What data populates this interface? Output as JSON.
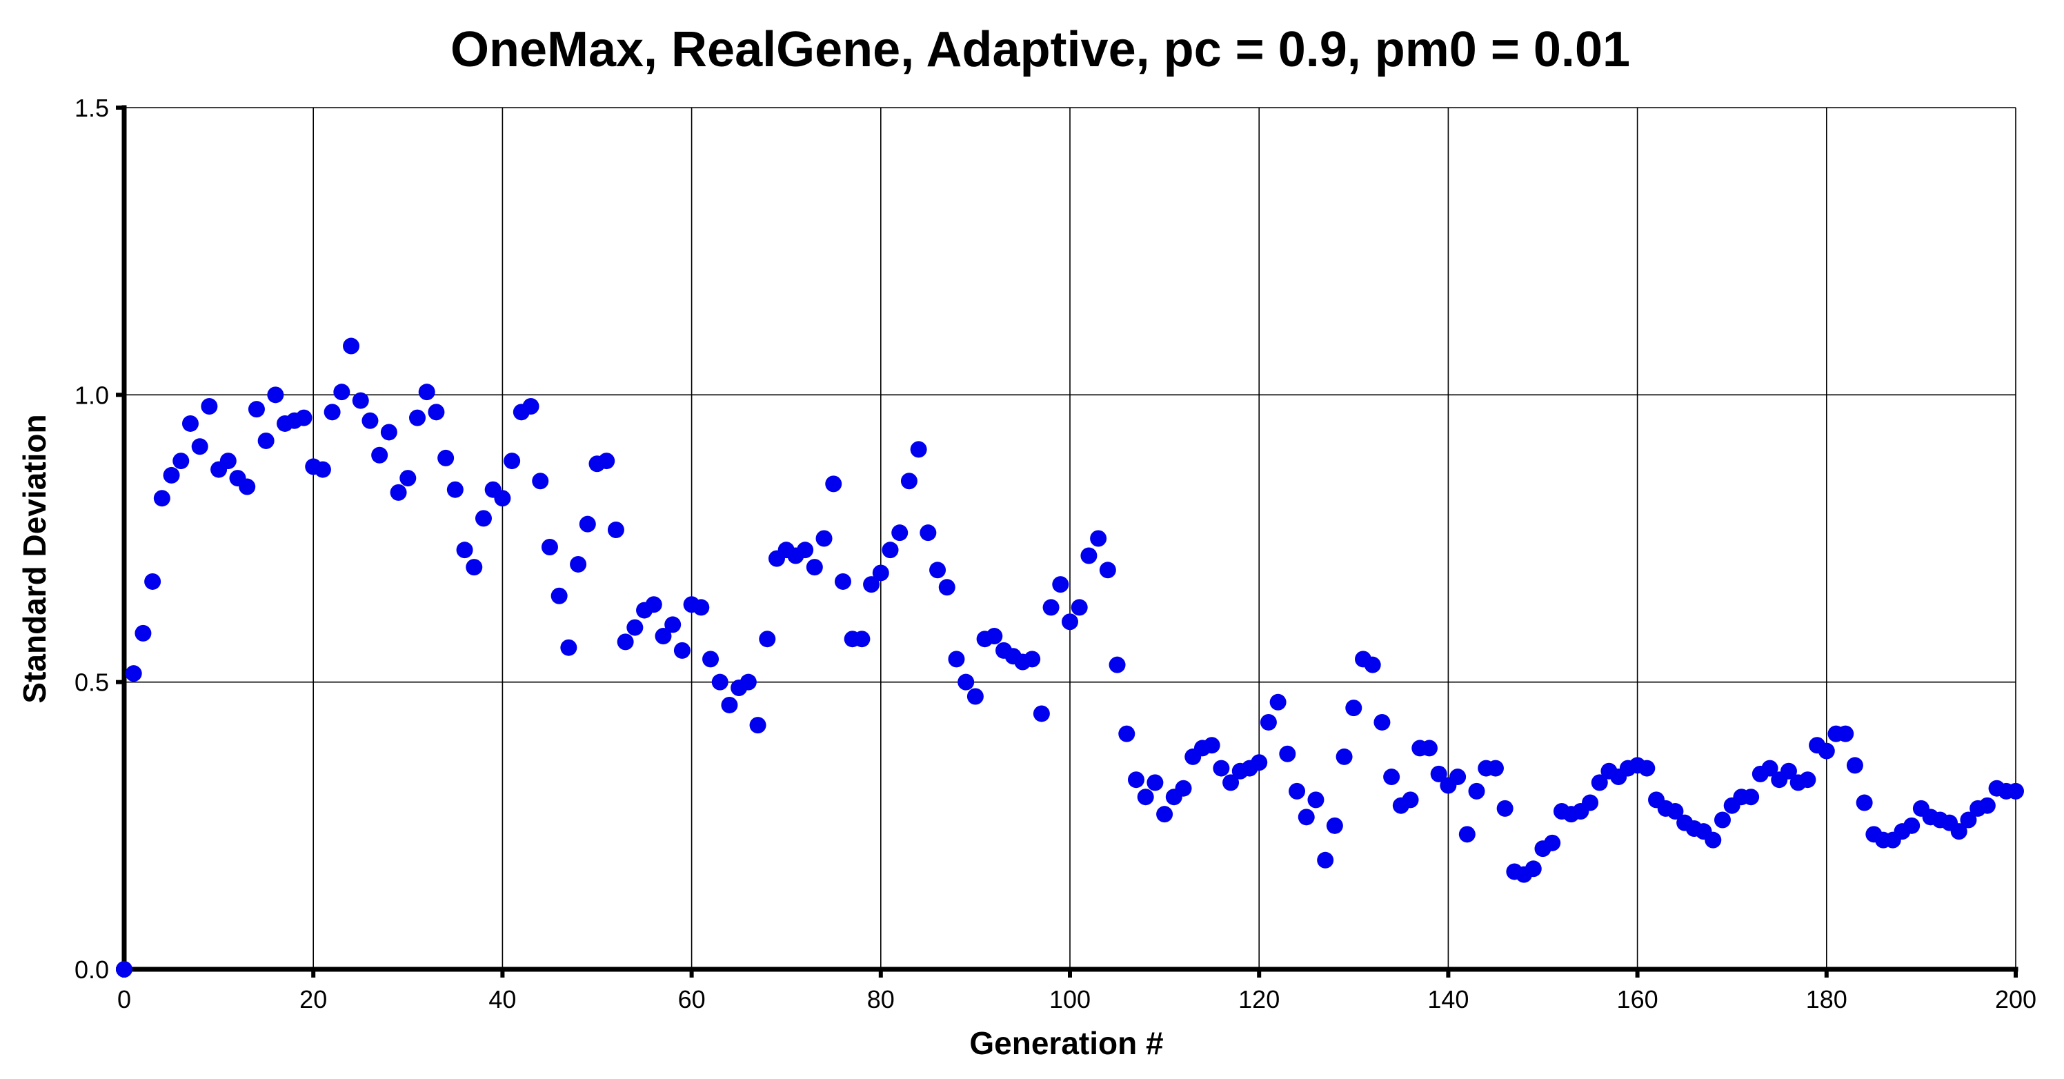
{
  "chart_data": {
    "type": "scatter",
    "title": "OneMax, RealGene, Adaptive, pc = 0.9, pm0 = 0.01",
    "xlabel": "Generation #",
    "ylabel": "Standard Deviation",
    "xlim": [
      0,
      200
    ],
    "ylim": [
      0,
      1.5
    ],
    "xticks": [
      "0",
      "20",
      "40",
      "60",
      "80",
      "100",
      "120",
      "140",
      "160",
      "180",
      "200"
    ],
    "yticks": [
      "0.0",
      "0.5",
      "1.0",
      "1.5"
    ],
    "grid": true,
    "marker_color": "#0000ee",
    "series": [
      {
        "x": [
          0,
          1,
          2,
          3,
          4,
          5,
          6,
          7,
          8,
          9,
          10,
          11,
          12,
          13,
          14,
          15,
          16,
          17,
          18,
          19,
          20,
          21,
          22,
          23,
          24,
          25,
          26,
          27,
          28,
          29,
          30,
          31,
          32,
          33,
          34,
          35,
          36,
          37,
          38,
          39,
          40,
          41,
          42,
          43,
          44,
          45,
          46,
          47,
          48,
          49,
          50,
          51,
          52,
          53,
          54,
          55,
          56,
          57,
          58,
          59,
          60,
          61,
          62,
          63,
          64,
          65,
          66,
          67,
          68,
          69,
          70,
          71,
          72,
          73,
          74,
          75,
          76,
          77,
          78,
          79,
          80,
          81,
          82,
          83,
          84,
          85,
          86,
          87,
          88,
          89,
          90,
          91,
          92,
          93,
          94,
          95,
          96,
          97,
          98,
          99,
          100,
          101,
          102,
          103,
          104,
          105,
          106,
          107,
          108,
          109,
          110,
          111,
          112,
          113,
          114,
          115,
          116,
          117,
          118,
          119,
          120,
          121,
          122,
          123,
          124,
          125,
          126,
          127,
          128,
          129,
          130,
          131,
          132,
          133,
          134,
          135,
          136,
          137,
          138,
          139,
          140,
          141,
          142,
          143,
          144,
          145,
          146,
          147,
          148,
          149,
          150,
          151,
          152,
          153,
          154,
          155,
          156,
          157,
          158,
          159,
          160,
          161,
          162,
          163,
          164,
          165,
          166,
          167,
          168,
          169,
          170,
          171,
          172,
          173,
          174,
          175,
          176,
          177,
          178,
          179,
          180,
          181,
          182,
          183,
          184,
          185,
          186,
          187,
          188,
          189,
          190,
          191,
          192,
          193,
          194,
          195,
          196,
          197,
          198,
          199,
          200
        ],
        "y": [
          0.0,
          0.515,
          0.585,
          0.675,
          0.82,
          0.86,
          0.885,
          0.95,
          0.91,
          0.98,
          0.87,
          0.885,
          0.855,
          0.84,
          0.975,
          0.92,
          1.0,
          0.95,
          0.955,
          0.96,
          0.875,
          0.87,
          0.97,
          1.005,
          1.085,
          0.99,
          0.955,
          0.895,
          0.935,
          0.83,
          0.855,
          0.96,
          1.005,
          0.97,
          0.89,
          0.835,
          0.73,
          0.7,
          0.785,
          0.835,
          0.82,
          0.885,
          0.97,
          0.98,
          0.85,
          0.735,
          0.65,
          0.56,
          0.705,
          0.775,
          0.88,
          0.885,
          0.765,
          0.57,
          0.595,
          0.625,
          0.635,
          0.58,
          0.6,
          0.555,
          0.635,
          0.63,
          0.54,
          0.5,
          0.46,
          0.49,
          0.5,
          0.425,
          0.575,
          0.715,
          0.73,
          0.72,
          0.73,
          0.7,
          0.75,
          0.845,
          0.675,
          0.575,
          0.575,
          0.67,
          0.69,
          0.73,
          0.76,
          0.85,
          0.905,
          0.76,
          0.695,
          0.665,
          0.54,
          0.5,
          0.475,
          0.575,
          0.58,
          0.555,
          0.545,
          0.535,
          0.54,
          0.445,
          0.63,
          0.67,
          0.605,
          0.63,
          0.72,
          0.75,
          0.695,
          0.53,
          0.41,
          0.33,
          0.3,
          0.325,
          0.27,
          0.3,
          0.315,
          0.37,
          0.385,
          0.39,
          0.35,
          0.325,
          0.345,
          0.35,
          0.36,
          0.43,
          0.465,
          0.375,
          0.31,
          0.265,
          0.295,
          0.19,
          0.25,
          0.37,
          0.455,
          0.54,
          0.53,
          0.43,
          0.335,
          0.285,
          0.295,
          0.385,
          0.385,
          0.34,
          0.32,
          0.335,
          0.235,
          0.31,
          0.35,
          0.35,
          0.28,
          0.17,
          0.165,
          0.175,
          0.21,
          0.22,
          0.275,
          0.27,
          0.275,
          0.29,
          0.325,
          0.345,
          0.335,
          0.35,
          0.355,
          0.35,
          0.295,
          0.28,
          0.275,
          0.255,
          0.245,
          0.24,
          0.225,
          0.26,
          0.285,
          0.3,
          0.3,
          0.34,
          0.35,
          0.33,
          0.345,
          0.325,
          0.33,
          0.39,
          0.38,
          0.41,
          0.41,
          0.355,
          0.29,
          0.235,
          0.225,
          0.225,
          0.24,
          0.25,
          0.28,
          0.265,
          0.26,
          0.255,
          0.24,
          0.26,
          0.28,
          0.285,
          0.315,
          0.31,
          0.31
        ]
      }
    ]
  }
}
